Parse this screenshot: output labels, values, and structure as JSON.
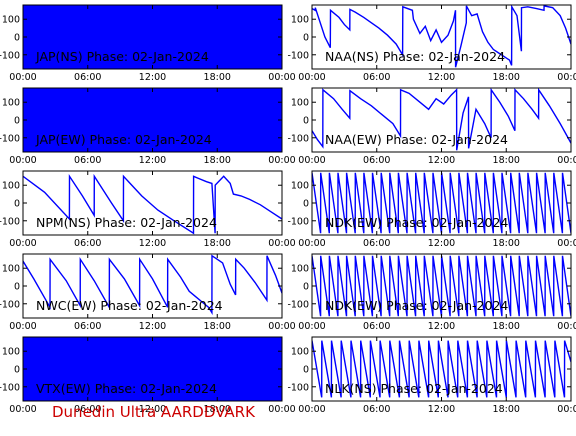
{
  "footer": {
    "text": "Dunedin Ultra AARDDVARK",
    "color": "#cc0000"
  },
  "style": {
    "trace_color": "#0000ff",
    "axis_color": "#000000",
    "background": "#ffffff"
  },
  "chart_data": [
    {
      "id": "jap-ns",
      "type": "line",
      "title": "JAP(NS) Phase: 02-Jan-2024",
      "legend": "none",
      "xlabel": "",
      "ylabel": "",
      "x_ticks": [
        "00:00",
        "06:00",
        "12:00",
        "18:00",
        "00:00"
      ],
      "xlim": [
        0,
        24
      ],
      "y_ticks": [
        100,
        0,
        -100
      ],
      "ylim": [
        -180,
        180
      ],
      "series": [
        {
          "fill": "solid",
          "x": [
            0,
            24
          ],
          "y": [
            180,
            180
          ]
        }
      ]
    },
    {
      "id": "naa-ns",
      "type": "line",
      "title": "NAA(NS) Phase: 02-Jan-2024",
      "legend": "none",
      "xlabel": "",
      "ylabel": "",
      "x_ticks": [
        "00:00",
        "06:00",
        "12:00",
        "18:00",
        "00:00"
      ],
      "xlim": [
        0,
        24
      ],
      "y_ticks": [
        100,
        0,
        -100
      ],
      "ylim": [
        -180,
        180
      ],
      "series": [
        {
          "x": [
            0,
            0.3,
            0.31,
            1.2,
            1.7,
            1.71,
            2.5,
            3.0,
            3.5,
            3.51,
            4.0,
            4.8,
            5.5,
            6.2,
            7.0,
            7.8,
            8.4,
            8.41,
            9.3,
            9.4,
            10.0,
            10.5,
            11.0,
            11.5,
            12.0,
            12.6,
            13.1,
            13.3,
            13.31,
            13.8,
            14.3,
            14.31,
            14.8,
            15.3,
            15.8,
            16.3,
            16.8,
            17.3,
            17.8,
            18.3,
            18.5,
            18.51,
            19.0,
            19.4,
            19.41,
            20.0,
            20.8,
            21.5,
            21.51,
            22.3,
            23.0,
            23.5,
            24
          ],
          "y": [
            160,
            150,
            165,
            0,
            -60,
            150,
            110,
            70,
            40,
            155,
            140,
            110,
            80,
            50,
            10,
            -40,
            -100,
            170,
            150,
            100,
            20,
            60,
            -20,
            40,
            -30,
            10,
            90,
            150,
            -170,
            -50,
            80,
            175,
            120,
            130,
            30,
            -30,
            -70,
            -90,
            -110,
            -130,
            -160,
            170,
            120,
            -80,
            165,
            170,
            160,
            150,
            175,
            165,
            120,
            50,
            -40
          ]
        }
      ]
    },
    {
      "id": "jap-ew",
      "type": "line",
      "title": "JAP(EW) Phase: 02-Jan-2024",
      "legend": "none",
      "xlabel": "",
      "ylabel": "",
      "x_ticks": [
        "00:00",
        "06:00",
        "12:00",
        "18:00",
        "00:00"
      ],
      "xlim": [
        0,
        24
      ],
      "y_ticks": [
        100,
        0,
        -100
      ],
      "ylim": [
        -180,
        180
      ],
      "series": [
        {
          "fill": "solid",
          "x": [
            0,
            24
          ],
          "y": [
            180,
            180
          ]
        }
      ]
    },
    {
      "id": "naa-ew",
      "type": "line",
      "title": "NAA(EW) Phase: 02-Jan-2024",
      "legend": "none",
      "xlabel": "",
      "ylabel": "",
      "x_ticks": [
        "00:00",
        "06:00",
        "12:00",
        "18:00",
        "00:00"
      ],
      "xlim": [
        0,
        24
      ],
      "y_ticks": [
        100,
        0,
        -100
      ],
      "ylim": [
        -180,
        180
      ],
      "series": [
        {
          "x": [
            0,
            0.5,
            1.0,
            1.01,
            2.0,
            2.8,
            3.5,
            3.51,
            4.5,
            5.5,
            6.5,
            7.5,
            8.2,
            8.21,
            9.0,
            10.0,
            10.8,
            11.5,
            12.2,
            12.9,
            13.4,
            13.41,
            14.0,
            14.5,
            14.51,
            15.2,
            16.0,
            16.6,
            16.61,
            17.4,
            18.2,
            18.8,
            18.81,
            19.6,
            20.4,
            21.0,
            21.01,
            22.0,
            23.0,
            24
          ],
          "y": [
            -60,
            -110,
            -150,
            170,
            120,
            60,
            10,
            165,
            120,
            80,
            30,
            -20,
            -90,
            170,
            150,
            100,
            60,
            120,
            90,
            140,
            170,
            -170,
            40,
            130,
            -160,
            60,
            -20,
            -100,
            170,
            100,
            20,
            -60,
            170,
            120,
            60,
            10,
            170,
            80,
            -20,
            -130
          ]
        }
      ]
    },
    {
      "id": "npm-ns",
      "type": "line",
      "title": "NPM(NS) Phase: 02-Jan-2024",
      "legend": "none",
      "xlabel": "",
      "ylabel": "",
      "x_ticks": [
        "00:00",
        "06:00",
        "12:00",
        "18:00",
        "00:00"
      ],
      "xlim": [
        0,
        24
      ],
      "y_ticks": [
        100,
        0,
        -100
      ],
      "ylim": [
        -180,
        180
      ],
      "series": [
        {
          "x": [
            0,
            2.0,
            4.3,
            4.31,
            5.5,
            6.6,
            6.61,
            8.2,
            9.3,
            9.31,
            11.0,
            12.5,
            14.0,
            15.8,
            15.81,
            16.2,
            17.0,
            17.5,
            17.8,
            17.81,
            18.6,
            19.2,
            19.5,
            20.2,
            21.0,
            22.0,
            23.0,
            24
          ],
          "y": [
            150,
            60,
            -90,
            150,
            40,
            -70,
            150,
            0,
            -100,
            150,
            40,
            -40,
            -100,
            -170,
            150,
            140,
            120,
            110,
            -170,
            100,
            150,
            110,
            50,
            40,
            20,
            -10,
            -50,
            -90
          ]
        }
      ]
    },
    {
      "id": "ndk-ew-1",
      "type": "line",
      "title": "NDK(EW) Phase: 02-Jan-2024",
      "legend": "none",
      "xlabel": "",
      "ylabel": "",
      "x_ticks": [
        "00:00",
        "06:00",
        "12:00",
        "18:00",
        "00:00"
      ],
      "xlim": [
        0,
        24
      ],
      "y_ticks": [
        100,
        0,
        -100
      ],
      "ylim": [
        -180,
        180
      ],
      "series": [
        {
          "x": [
            0,
            0.8,
            0.81,
            1.6,
            1.61,
            2.4,
            2.41,
            3.2,
            3.21,
            4.0,
            4.01,
            4.8,
            4.81,
            5.6,
            5.61,
            6.4,
            6.41,
            7.2,
            7.21,
            8.0,
            8.01,
            8.8,
            8.81,
            9.6,
            9.61,
            10.4,
            10.41,
            11.2,
            11.21,
            12.0,
            12.01,
            12.8,
            12.81,
            13.6,
            13.61,
            14.4,
            14.41,
            15.2,
            15.21,
            16.0,
            16.01,
            16.8,
            16.81,
            17.6,
            17.61,
            18.4,
            18.41,
            19.2,
            19.21,
            20.0,
            20.01,
            20.8,
            20.81,
            21.6,
            21.61,
            22.4,
            22.41,
            23.2,
            23.21,
            24
          ],
          "y": [
            170,
            -170,
            170,
            -170,
            170,
            -170,
            170,
            -170,
            170,
            -170,
            170,
            -170,
            170,
            -170,
            170,
            -170,
            170,
            -170,
            170,
            -170,
            170,
            -170,
            170,
            -170,
            170,
            -170,
            170,
            -170,
            170,
            -170,
            170,
            -170,
            170,
            -170,
            170,
            -170,
            170,
            -170,
            170,
            -170,
            170,
            -170,
            170,
            -170,
            170,
            -170,
            170,
            -170,
            170,
            -170,
            170,
            -170,
            170,
            -170,
            170,
            -170,
            170,
            -170,
            170,
            -170
          ]
        }
      ]
    },
    {
      "id": "nwc-ew",
      "type": "line",
      "title": "NWC(EW) Phase: 02-Jan-2024",
      "legend": "none",
      "xlabel": "",
      "ylabel": "",
      "x_ticks": [
        "00:00",
        "06:00",
        "12:00",
        "18:00",
        "00:00"
      ],
      "xlim": [
        0,
        24
      ],
      "y_ticks": [
        100,
        0,
        -100
      ],
      "ylim": [
        -180,
        180
      ],
      "series": [
        {
          "x": [
            0,
            1.0,
            2.5,
            2.51,
            4.0,
            5.3,
            5.31,
            6.6,
            8.0,
            8.01,
            9.4,
            10.8,
            10.81,
            12.0,
            13.4,
            13.41,
            14.6,
            15.4,
            16.0,
            16.6,
            17.2,
            17.5,
            17.51,
            18.0,
            18.5,
            19.2,
            19.7,
            19.71,
            20.5,
            21.5,
            22.6,
            22.61,
            23.4,
            24
          ],
          "y": [
            140,
            40,
            -120,
            150,
            30,
            -110,
            150,
            30,
            -120,
            150,
            40,
            -110,
            150,
            40,
            -120,
            150,
            50,
            -30,
            -60,
            -90,
            -120,
            -150,
            170,
            150,
            130,
            10,
            -50,
            150,
            100,
            20,
            -80,
            170,
            60,
            -40
          ]
        }
      ]
    },
    {
      "id": "ndk-ew-2",
      "type": "line",
      "title": "NDK(EW) Phase: 02-Jan-2024",
      "legend": "none",
      "xlabel": "",
      "ylabel": "",
      "x_ticks": [
        "00:00",
        "06:00",
        "12:00",
        "18:00",
        "00:00"
      ],
      "xlim": [
        0,
        24
      ],
      "y_ticks": [
        100,
        0,
        -100
      ],
      "ylim": [
        -180,
        180
      ],
      "series": [
        {
          "x": [
            0,
            0.8,
            0.81,
            1.6,
            1.61,
            2.4,
            2.41,
            3.2,
            3.21,
            4.0,
            4.01,
            4.8,
            4.81,
            5.6,
            5.61,
            6.4,
            6.41,
            7.2,
            7.21,
            8.0,
            8.01,
            8.8,
            8.81,
            9.6,
            9.61,
            10.4,
            10.41,
            11.2,
            11.21,
            12.0,
            12.01,
            12.8,
            12.81,
            13.6,
            13.61,
            14.4,
            14.41,
            15.2,
            15.21,
            16.0,
            16.01,
            16.8,
            16.81,
            17.6,
            17.61,
            18.4,
            18.41,
            19.2,
            19.21,
            20.0,
            20.01,
            20.8,
            20.81,
            21.6,
            21.61,
            22.4,
            22.41,
            23.2,
            23.21,
            24
          ],
          "y": [
            170,
            -170,
            170,
            -170,
            170,
            -170,
            170,
            -170,
            170,
            -170,
            170,
            -170,
            170,
            -170,
            170,
            -170,
            170,
            -170,
            170,
            -170,
            170,
            -170,
            170,
            -170,
            170,
            -170,
            170,
            -170,
            170,
            -170,
            170,
            -170,
            170,
            -170,
            170,
            -170,
            170,
            -170,
            170,
            -170,
            170,
            -170,
            170,
            -170,
            170,
            -170,
            170,
            -170,
            170,
            -170,
            170,
            -170,
            170,
            -170,
            170,
            -170,
            170,
            -170,
            170,
            -170
          ]
        }
      ]
    },
    {
      "id": "vtx-ew",
      "type": "line",
      "title": "VTX(EW) Phase: 02-Jan-2024",
      "legend": "none",
      "xlabel": "",
      "ylabel": "",
      "x_ticks": [
        "00:00",
        "06:00",
        "12:00",
        "18:00",
        "00:00"
      ],
      "xlim": [
        0,
        24
      ],
      "y_ticks": [
        100,
        0,
        -100
      ],
      "ylim": [
        -180,
        180
      ],
      "series": [
        {
          "fill": "solid",
          "x": [
            0,
            24
          ],
          "y": [
            180,
            180
          ]
        }
      ]
    },
    {
      "id": "nlk-ns",
      "type": "line",
      "title": "NLK(NS) Phase: 02-Jan-2024",
      "legend": "none",
      "xlabel": "",
      "ylabel": "",
      "x_ticks": [
        "00:00",
        "06:00",
        "12:00",
        "18:00",
        "00:00"
      ],
      "xlim": [
        0,
        24
      ],
      "y_ticks": [
        100,
        0,
        -100
      ],
      "ylim": [
        -180,
        180
      ],
      "series": [
        {
          "x": [
            0,
            0.9,
            0.91,
            1.8,
            1.81,
            2.7,
            2.71,
            3.6,
            3.61,
            4.5,
            4.51,
            5.4,
            5.41,
            6.3,
            6.31,
            7.2,
            7.21,
            8.1,
            8.11,
            9.0,
            9.01,
            9.9,
            9.91,
            10.8,
            10.81,
            11.7,
            11.71,
            12.6,
            12.61,
            13.5,
            13.51,
            14.4,
            14.41,
            15.3,
            15.31,
            16.2,
            16.21,
            17.1,
            17.11,
            18.0,
            18.01,
            18.9,
            18.91,
            19.8,
            19.81,
            20.7,
            20.71,
            21.6,
            21.61,
            22.5,
            22.51,
            23.4,
            23.41,
            24
          ],
          "y": [
            160,
            -160,
            160,
            -160,
            160,
            -160,
            160,
            -160,
            160,
            -160,
            160,
            -160,
            160,
            -160,
            160,
            -160,
            160,
            -160,
            160,
            -160,
            160,
            -160,
            160,
            -160,
            160,
            -160,
            160,
            -160,
            160,
            -160,
            160,
            -160,
            160,
            -160,
            160,
            -160,
            160,
            -160,
            160,
            -160,
            160,
            -160,
            160,
            -160,
            160,
            -160,
            160,
            -160,
            160,
            -160,
            160,
            -160,
            160,
            40
          ]
        }
      ]
    }
  ]
}
